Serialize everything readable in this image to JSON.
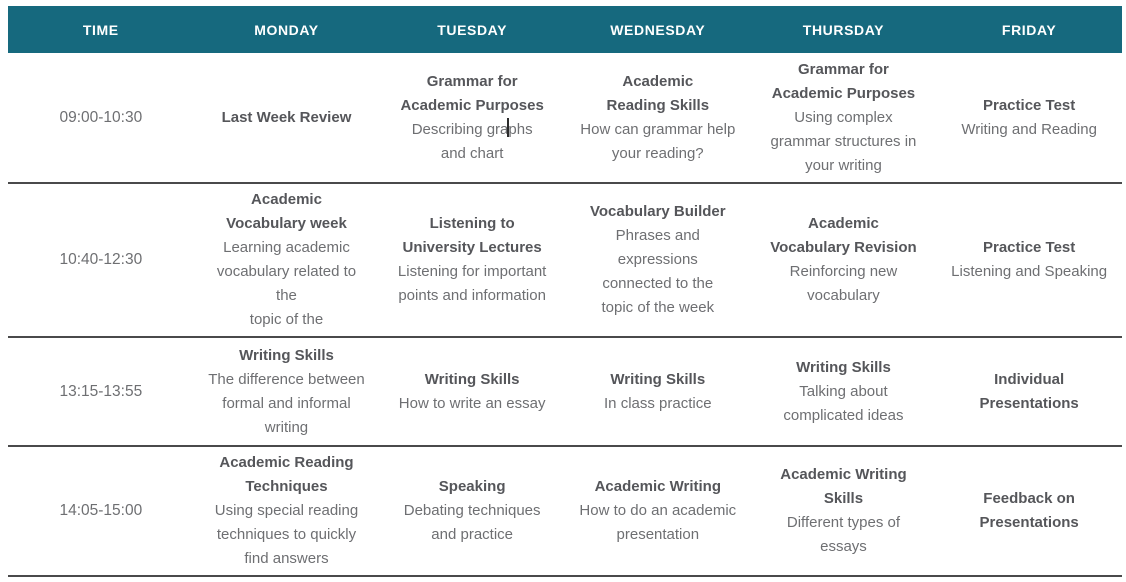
{
  "colors": {
    "header_bg": "#16697E",
    "header_text": "#FFFFFF",
    "lesson_title_text": "#55565A",
    "lesson_desc_text": "#6E6F72",
    "row_border": "#4A4A4B",
    "page_bg": "#FFFFFF"
  },
  "timetable": {
    "columns": [
      "TIME",
      "MONDAY",
      "TUESDAY",
      "WEDNESDAY",
      "THURSDAY",
      "FRIDAY"
    ],
    "rows": [
      {
        "time": "09:00-10:30",
        "cells": [
          {
            "title": "Last Week Review",
            "desc": ""
          },
          {
            "title": "Grammar for\nAcademic Purposes",
            "desc": "Describing graphs\nand chart"
          },
          {
            "title": "Academic\nReading Skills",
            "desc": "How can grammar help\nyour reading?"
          },
          {
            "title": "Grammar for\nAcademic Purposes",
            "desc": "Using complex\ngrammar structures in\nyour writing"
          },
          {
            "title": "Practice Test",
            "desc": "Writing and Reading"
          }
        ]
      },
      {
        "time": "10:40-12:30",
        "cells": [
          {
            "title": "Academic\nVocabulary week",
            "desc": "Learning academic\nvocabulary related to\nthe\ntopic of the"
          },
          {
            "title": "Listening to\nUniversity Lectures",
            "desc": "Listening for important\npoints and information"
          },
          {
            "title": "Vocabulary Builder",
            "desc": "Phrases and\nexpressions\nconnected to the\ntopic of the week"
          },
          {
            "title": "Academic\nVocabulary Revision",
            "desc": "Reinforcing new\nvocabulary"
          },
          {
            "title": "Practice Test",
            "desc": "Listening and Speaking"
          }
        ]
      },
      {
        "time": "13:15-13:55",
        "cells": [
          {
            "title": "Writing Skills",
            "desc": "The difference between\nformal and informal\nwriting"
          },
          {
            "title": "Writing Skills",
            "desc": "How to write an essay"
          },
          {
            "title": "Writing Skills",
            "desc": "In class practice"
          },
          {
            "title": "Writing Skills",
            "desc": "Talking about\ncomplicated ideas"
          },
          {
            "title": "Individual\nPresentations",
            "desc": ""
          }
        ]
      },
      {
        "time": "14:05-15:00",
        "cells": [
          {
            "title": "Academic Reading\nTechniques",
            "desc": "Using special reading\ntechniques to quickly\nfind answers"
          },
          {
            "title": "Speaking",
            "desc": "Debating techniques\nand practice"
          },
          {
            "title": "Academic Writing",
            "desc": "How to do an academic\npresentation"
          },
          {
            "title": "Academic Writing\nSkills",
            "desc": "Different types of\nessays"
          },
          {
            "title": "Feedback on\nPresentations",
            "desc": ""
          }
        ]
      }
    ]
  }
}
